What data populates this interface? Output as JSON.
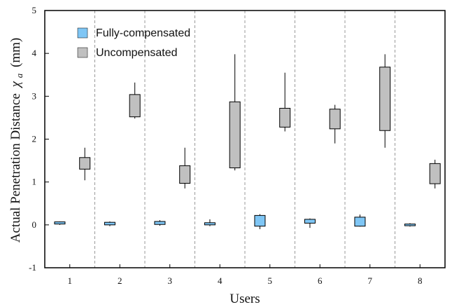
{
  "chart_data": {
    "type": "box",
    "xlabel": "Users",
    "ylabel": "Actual Penetration Distance",
    "ylabel_symbol": "χ",
    "ylabel_subscript": "a",
    "ylabel_unit": "(mm)",
    "ylim": [
      -1,
      5
    ],
    "yticks": [
      "-1",
      "0",
      "1",
      "2",
      "3",
      "4",
      "5"
    ],
    "categories": [
      "1",
      "2",
      "3",
      "4",
      "5",
      "6",
      "7",
      "8"
    ],
    "grid": "dashed vertical separators between users",
    "legend_placement": "top-left",
    "series": [
      {
        "name": "Fully-compensated",
        "color": "#7fc6f5",
        "boxes": [
          {
            "min": 0.0,
            "q1": 0.02,
            "q3": 0.07,
            "max": 0.08
          },
          {
            "min": -0.03,
            "q1": 0.0,
            "q3": 0.06,
            "max": 0.08
          },
          {
            "min": -0.02,
            "q1": 0.01,
            "q3": 0.08,
            "max": 0.11
          },
          {
            "min": -0.03,
            "q1": 0.0,
            "q3": 0.05,
            "max": 0.13
          },
          {
            "min": -0.1,
            "q1": -0.03,
            "q3": 0.22,
            "max": 0.25
          },
          {
            "min": -0.07,
            "q1": 0.04,
            "q3": 0.13,
            "max": 0.15
          },
          {
            "min": -0.04,
            "q1": -0.03,
            "q3": 0.18,
            "max": 0.24
          },
          {
            "min": -0.04,
            "q1": -0.02,
            "q3": 0.02,
            "max": 0.04
          }
        ]
      },
      {
        "name": "Uncompensated",
        "color": "#c0c0c0",
        "boxes": [
          {
            "min": 1.04,
            "q1": 1.3,
            "q3": 1.57,
            "max": 1.8
          },
          {
            "min": 2.48,
            "q1": 2.52,
            "q3": 3.04,
            "max": 3.32
          },
          {
            "min": 0.85,
            "q1": 0.97,
            "q3": 1.38,
            "max": 1.8
          },
          {
            "min": 1.27,
            "q1": 1.33,
            "q3": 2.87,
            "max": 3.98
          },
          {
            "min": 2.18,
            "q1": 2.28,
            "q3": 2.72,
            "max": 3.55
          },
          {
            "min": 1.9,
            "q1": 2.24,
            "q3": 2.7,
            "max": 2.8
          },
          {
            "min": 1.8,
            "q1": 2.2,
            "q3": 3.68,
            "max": 3.98
          },
          {
            "min": 0.85,
            "q1": 0.96,
            "q3": 1.43,
            "max": 1.52
          }
        ]
      }
    ]
  }
}
